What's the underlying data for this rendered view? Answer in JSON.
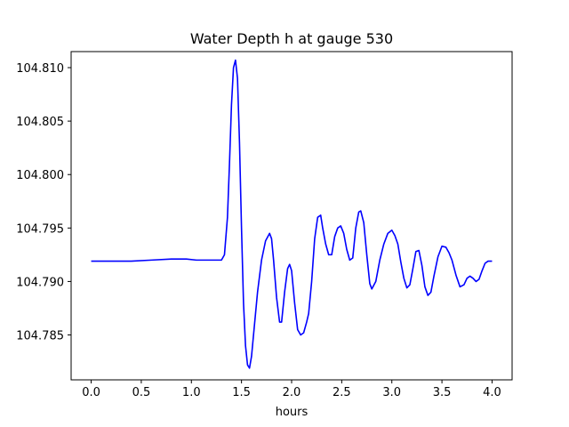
{
  "chart_data": {
    "type": "line",
    "title": "Water Depth h at gauge 530",
    "xlabel": "hours",
    "ylabel": "",
    "xlim": [
      -0.2,
      4.2
    ],
    "ylim": [
      104.7808,
      104.8115
    ],
    "xticks": [
      "0.0",
      "0.5",
      "1.0",
      "1.5",
      "2.0",
      "2.5",
      "3.0",
      "3.5",
      "4.0"
    ],
    "xtick_values": [
      0.0,
      0.5,
      1.0,
      1.5,
      2.0,
      2.5,
      3.0,
      3.5,
      4.0
    ],
    "yticks": [
      "104.785",
      "104.790",
      "104.795",
      "104.800",
      "104.805",
      "104.810"
    ],
    "ytick_values": [
      104.785,
      104.79,
      104.795,
      104.8,
      104.805,
      104.81
    ],
    "grid": false,
    "colors": {
      "series": "#0000ff",
      "axes": "#000000",
      "background": "#ffffff"
    },
    "series": [
      {
        "name": "",
        "x": [
          0.0,
          0.2,
          0.4,
          0.6,
          0.8,
          0.95,
          1.05,
          1.2,
          1.3,
          1.33,
          1.36,
          1.38,
          1.4,
          1.42,
          1.44,
          1.46,
          1.48,
          1.5,
          1.52,
          1.54,
          1.56,
          1.58,
          1.6,
          1.63,
          1.66,
          1.7,
          1.74,
          1.78,
          1.8,
          1.82,
          1.85,
          1.88,
          1.9,
          1.93,
          1.96,
          1.98,
          2.0,
          2.03,
          2.06,
          2.09,
          2.12,
          2.15,
          2.17,
          2.2,
          2.23,
          2.26,
          2.29,
          2.31,
          2.34,
          2.37,
          2.4,
          2.43,
          2.46,
          2.49,
          2.52,
          2.55,
          2.58,
          2.61,
          2.64,
          2.67,
          2.69,
          2.72,
          2.75,
          2.78,
          2.8,
          2.84,
          2.88,
          2.92,
          2.96,
          3.0,
          3.03,
          3.06,
          3.09,
          3.12,
          3.15,
          3.18,
          3.21,
          3.24,
          3.27,
          3.3,
          3.33,
          3.36,
          3.39,
          3.42,
          3.46,
          3.5,
          3.54,
          3.57,
          3.6,
          3.64,
          3.68,
          3.72,
          3.75,
          3.78,
          3.81,
          3.84,
          3.87,
          3.9,
          3.93,
          3.96,
          4.0
        ],
        "y": [
          104.7919,
          104.7919,
          104.7919,
          104.792,
          104.7921,
          104.7921,
          104.792,
          104.792,
          104.792,
          104.7925,
          104.796,
          104.801,
          104.8065,
          104.81,
          104.8107,
          104.809,
          104.803,
          104.795,
          104.788,
          104.784,
          104.7822,
          104.7819,
          104.783,
          104.786,
          104.789,
          104.792,
          104.7938,
          104.7945,
          104.794,
          104.792,
          104.7885,
          104.7862,
          104.7862,
          104.789,
          104.7912,
          104.7916,
          104.791,
          104.788,
          104.7855,
          104.785,
          104.7852,
          104.7862,
          104.787,
          104.79,
          104.794,
          104.796,
          104.7962,
          104.795,
          104.7935,
          104.7925,
          104.7925,
          104.7942,
          104.795,
          104.7952,
          104.7945,
          104.793,
          104.792,
          104.7922,
          104.795,
          104.7965,
          104.7966,
          104.7955,
          104.7925,
          104.7898,
          104.7893,
          104.79,
          104.792,
          104.7935,
          104.7945,
          104.7948,
          104.7943,
          104.7935,
          104.7918,
          104.7903,
          104.7894,
          104.7897,
          104.7912,
          104.7928,
          104.7929,
          104.7915,
          104.7895,
          104.7887,
          104.789,
          104.7905,
          104.7923,
          104.7933,
          104.7932,
          104.7927,
          104.792,
          104.7906,
          104.7895,
          104.7897,
          104.7903,
          104.7905,
          104.7903,
          104.79,
          104.7902,
          104.791,
          104.7917,
          104.7919,
          104.7919
        ]
      }
    ]
  }
}
